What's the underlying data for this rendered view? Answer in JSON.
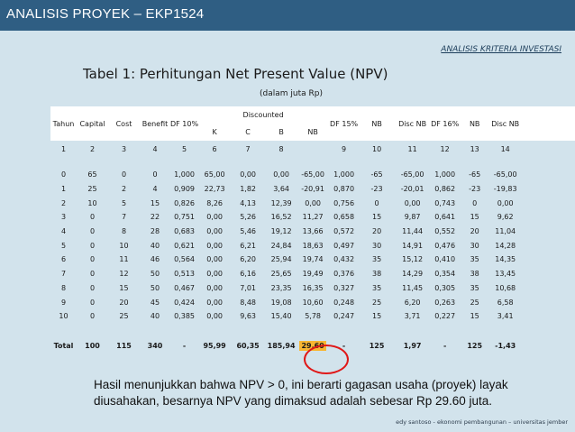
{
  "header": {
    "title": "ANALISIS PROYEK – EKP1524"
  },
  "section_label": "ANALISIS KRITERIA INVESTASI",
  "table": {
    "title": "Tabel 1: Perhitungan Net Present Value (NPV)",
    "subtitle": "(dalam juta Rp)",
    "headers": {
      "tahun": "Tahun",
      "capital": "Capital",
      "cost": "Cost",
      "benefit": "Benefit",
      "df10": "DF 10%",
      "discounted": "Discounted",
      "k": "K",
      "c": "C",
      "b": "B",
      "nb": "NB",
      "df15": "DF 15%",
      "nb2": "NB",
      "discnb1": "Disc NB",
      "df16": "DF 16%",
      "nb3": "NB",
      "discnb2": "Disc NB"
    },
    "column_numbers": [
      "1",
      "2",
      "3",
      "4",
      "5",
      "6",
      "7",
      "8",
      "9",
      "10",
      "11",
      "12",
      "13",
      "14"
    ],
    "rows": [
      [
        "0",
        "65",
        "0",
        "0",
        "1,000",
        "65,00",
        "0,00",
        "0,00",
        "-65,00",
        "1,000",
        "-65",
        "-65,00",
        "1,000",
        "-65",
        "-65,00"
      ],
      [
        "1",
        "25",
        "2",
        "4",
        "0,909",
        "22,73",
        "1,82",
        "3,64",
        "-20,91",
        "0,870",
        "-23",
        "-20,01",
        "0,862",
        "-23",
        "-19,83"
      ],
      [
        "2",
        "10",
        "5",
        "15",
        "0,826",
        "8,26",
        "4,13",
        "12,39",
        "0,00",
        "0,756",
        "0",
        "0,00",
        "0,743",
        "0",
        "0,00"
      ],
      [
        "3",
        "0",
        "7",
        "22",
        "0,751",
        "0,00",
        "5,26",
        "16,52",
        "11,27",
        "0,658",
        "15",
        "9,87",
        "0,641",
        "15",
        "9,62"
      ],
      [
        "4",
        "0",
        "8",
        "28",
        "0,683",
        "0,00",
        "5,46",
        "19,12",
        "13,66",
        "0,572",
        "20",
        "11,44",
        "0,552",
        "20",
        "11,04"
      ],
      [
        "5",
        "0",
        "10",
        "40",
        "0,621",
        "0,00",
        "6,21",
        "24,84",
        "18,63",
        "0,497",
        "30",
        "14,91",
        "0,476",
        "30",
        "14,28"
      ],
      [
        "6",
        "0",
        "11",
        "46",
        "0,564",
        "0,00",
        "6,20",
        "25,94",
        "19,74",
        "0,432",
        "35",
        "15,12",
        "0,410",
        "35",
        "14,35"
      ],
      [
        "7",
        "0",
        "12",
        "50",
        "0,513",
        "0,00",
        "6,16",
        "25,65",
        "19,49",
        "0,376",
        "38",
        "14,29",
        "0,354",
        "38",
        "13,45"
      ],
      [
        "8",
        "0",
        "15",
        "50",
        "0,467",
        "0,00",
        "7,01",
        "23,35",
        "16,35",
        "0,327",
        "35",
        "11,45",
        "0,305",
        "35",
        "10,68"
      ],
      [
        "9",
        "0",
        "20",
        "45",
        "0,424",
        "0,00",
        "8,48",
        "19,08",
        "10,60",
        "0,248",
        "25",
        "6,20",
        "0,263",
        "25",
        "6,58"
      ],
      [
        "10",
        "0",
        "25",
        "40",
        "0,385",
        "0,00",
        "9,63",
        "15,40",
        "5,78",
        "0,247",
        "15",
        "3,71",
        "0,227",
        "15",
        "3,41"
      ]
    ],
    "total": [
      "Total",
      "100",
      "115",
      "340",
      "-",
      "95,99",
      "60,35",
      "185,94",
      "29,60",
      "-",
      "125",
      "1,97",
      "-",
      "125",
      "-1,43"
    ]
  },
  "conclusion": {
    "line1": "Hasil menunjukkan bahwa NPV > 0, ini berarti gagasan usaha (proyek) layak",
    "line2": "diusahakan, besarnya NPV yang dimaksud adalah sebesar Rp 29.60 juta."
  },
  "footer": "edy santoso - ekonomi pembangunan – universitas jember",
  "colors": {
    "topbar": "#2f5e83",
    "background": "#d2e3ec",
    "highlight": "#f7b632",
    "circle": "#e01818"
  }
}
